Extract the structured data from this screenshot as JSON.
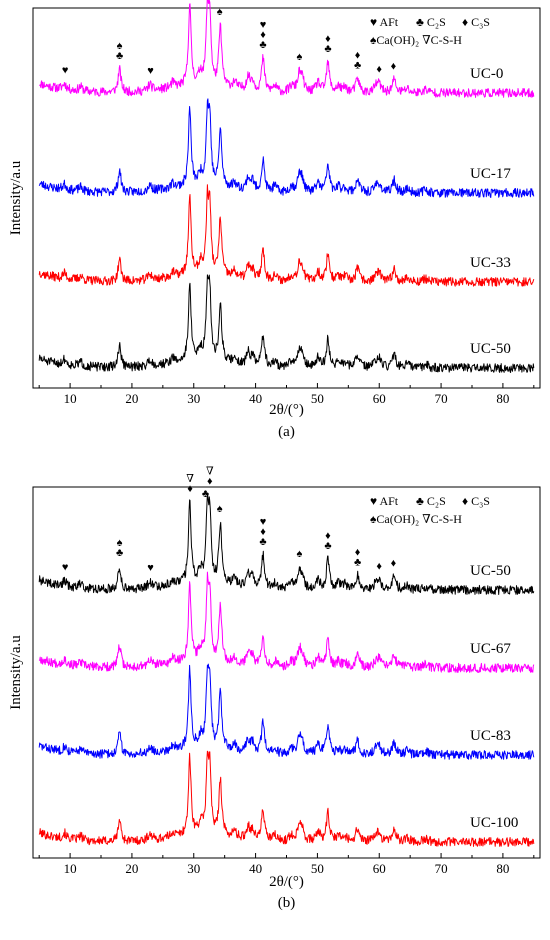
{
  "chart_data": [
    {
      "type": "line",
      "panel": "(a)",
      "xlabel": "2θ/(°)",
      "ylabel": "Intensity/a.u",
      "xlim": [
        4,
        86
      ],
      "xticks": [
        10,
        20,
        30,
        40,
        50,
        60,
        70,
        80
      ],
      "legend": {
        "placement": "top-right",
        "entries": [
          {
            "symbol": "♥",
            "text": "AFt"
          },
          {
            "symbol": "♣",
            "text": "C₂S"
          },
          {
            "symbol": "♦",
            "text": "C₃S"
          },
          {
            "symbol": "♠",
            "text": "Ca(OH)₂"
          },
          {
            "symbol": "∇",
            "text": "C-S-H"
          }
        ]
      },
      "markers": [
        {
          "x": 9.2,
          "symbols": [
            "♥"
          ]
        },
        {
          "x": 18.0,
          "symbols": [
            "♠",
            "♣"
          ]
        },
        {
          "x": 23.0,
          "symbols": [
            "♥"
          ]
        },
        {
          "x": 29.4,
          "symbols": [
            "∇",
            "♦"
          ]
        },
        {
          "x": 32.2,
          "symbols": [
            "♣"
          ]
        },
        {
          "x": 32.6,
          "symbols": [
            "∇",
            "♦"
          ]
        },
        {
          "x": 34.2,
          "symbols": [
            "♠"
          ]
        },
        {
          "x": 41.2,
          "symbols": [
            "♥",
            "♦",
            "♣"
          ]
        },
        {
          "x": 47.1,
          "symbols": [
            "♠"
          ]
        },
        {
          "x": 51.7,
          "symbols": [
            "♦",
            "♣"
          ]
        },
        {
          "x": 56.5,
          "symbols": [
            "♦",
            "♣"
          ]
        },
        {
          "x": 60.0,
          "symbols": [
            "♦"
          ]
        },
        {
          "x": 62.3,
          "symbols": [
            "♦"
          ]
        }
      ],
      "series": [
        {
          "name": "UC-0",
          "color": "#ff00ff"
        },
        {
          "name": "UC-17",
          "color": "#0000ff"
        },
        {
          "name": "UC-33",
          "color": "#ff0000"
        },
        {
          "name": "UC-50",
          "color": "#000000"
        }
      ]
    },
    {
      "type": "line",
      "panel": "(b)",
      "xlabel": "2θ/(°)",
      "ylabel": "Intensity/a.u",
      "xlim": [
        4,
        86
      ],
      "xticks": [
        10,
        20,
        30,
        40,
        50,
        60,
        70,
        80
      ],
      "legend": {
        "placement": "top-right",
        "entries": [
          {
            "symbol": "♥",
            "text": "AFt"
          },
          {
            "symbol": "♣",
            "text": "C₂S"
          },
          {
            "symbol": "♦",
            "text": "C₃S"
          },
          {
            "symbol": "♠",
            "text": "Ca(OH)₂"
          },
          {
            "symbol": "∇",
            "text": "C-S-H"
          }
        ]
      },
      "markers": [
        {
          "x": 9.2,
          "symbols": [
            "♥"
          ]
        },
        {
          "x": 18.0,
          "symbols": [
            "♠",
            "♣"
          ]
        },
        {
          "x": 23.0,
          "symbols": [
            "♥"
          ]
        },
        {
          "x": 29.4,
          "symbols": [
            "∇",
            "♦"
          ]
        },
        {
          "x": 31.9,
          "symbols": [
            "♣"
          ]
        },
        {
          "x": 32.6,
          "symbols": [
            "∇",
            "♦"
          ]
        },
        {
          "x": 34.2,
          "symbols": [
            "♠"
          ]
        },
        {
          "x": 41.2,
          "symbols": [
            "♥",
            "♦",
            "♣"
          ]
        },
        {
          "x": 47.1,
          "symbols": [
            "♠"
          ]
        },
        {
          "x": 51.7,
          "symbols": [
            "♦",
            "♣"
          ]
        },
        {
          "x": 56.5,
          "symbols": [
            "♦",
            "♣"
          ]
        },
        {
          "x": 60.0,
          "symbols": [
            "♦"
          ]
        },
        {
          "x": 62.3,
          "symbols": [
            "♦"
          ]
        }
      ],
      "series": [
        {
          "name": "UC-50",
          "color": "#000000"
        },
        {
          "name": "UC-67",
          "color": "#ff00ff"
        },
        {
          "name": "UC-83",
          "color": "#0000ff"
        },
        {
          "name": "UC-100",
          "color": "#ff0000"
        }
      ]
    }
  ]
}
